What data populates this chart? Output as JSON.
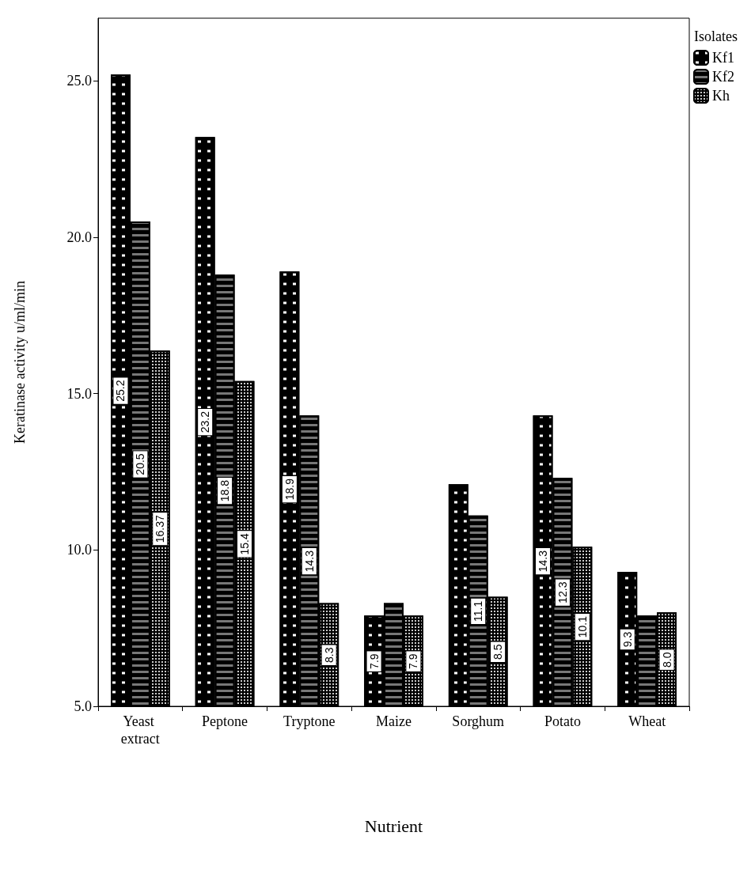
{
  "chart_data": {
    "type": "bar",
    "xlabel": "Nutrient",
    "ylabel": "Keratinase activity u/ml/min",
    "legend_title": "Isolates",
    "legend": "top right",
    "grid": false,
    "categories": [
      "Yeast extract",
      "Peptone",
      "Tryptone",
      "Maize",
      "Sorghum",
      "Potato",
      "Wheat"
    ],
    "ylim": [
      5,
      27
    ],
    "yticks": [
      {
        "value": 5,
        "label": "5.0"
      },
      {
        "value": 10,
        "label": "10.0"
      },
      {
        "value": 15,
        "label": "15.0"
      },
      {
        "value": 20,
        "label": "20.0"
      },
      {
        "value": 25,
        "label": "25.0"
      }
    ],
    "series": [
      {
        "name": "Kf1",
        "color": "#000000",
        "values": [
          25.2,
          23.2,
          18.9,
          7.9,
          12.1,
          14.3,
          9.3
        ],
        "value_labels": [
          "25.2",
          "23.2",
          "18.9",
          "7.9",
          null,
          "14.3",
          "9.3"
        ]
      },
      {
        "name": "Kf2",
        "color": "#000000",
        "values": [
          20.5,
          18.8,
          14.3,
          8.3,
          11.1,
          12.3,
          7.9
        ],
        "value_labels": [
          "20.5",
          "18.8",
          "14.3",
          null,
          "11.1",
          "12.3",
          null
        ]
      },
      {
        "name": "Kh",
        "color": "#000000",
        "values": [
          16.37,
          15.4,
          8.3,
          7.9,
          8.5,
          10.1,
          8.0
        ],
        "value_labels": [
          "16.37",
          "15.4",
          "8.3",
          "7.9",
          "8.5",
          "10.1",
          "8.0"
        ]
      }
    ]
  }
}
